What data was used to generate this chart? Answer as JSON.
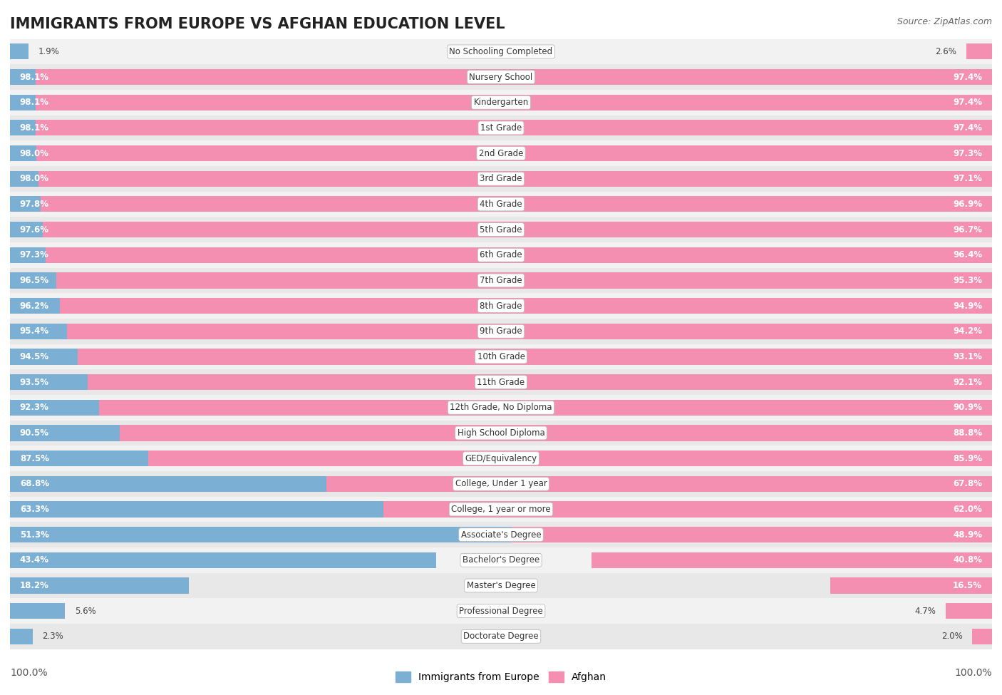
{
  "title": "IMMIGRANTS FROM EUROPE VS AFGHAN EDUCATION LEVEL",
  "source": "Source: ZipAtlas.com",
  "categories": [
    "No Schooling Completed",
    "Nursery School",
    "Kindergarten",
    "1st Grade",
    "2nd Grade",
    "3rd Grade",
    "4th Grade",
    "5th Grade",
    "6th Grade",
    "7th Grade",
    "8th Grade",
    "9th Grade",
    "10th Grade",
    "11th Grade",
    "12th Grade, No Diploma",
    "High School Diploma",
    "GED/Equivalency",
    "College, Under 1 year",
    "College, 1 year or more",
    "Associate's Degree",
    "Bachelor's Degree",
    "Master's Degree",
    "Professional Degree",
    "Doctorate Degree"
  ],
  "europe_values": [
    1.9,
    98.1,
    98.1,
    98.1,
    98.0,
    98.0,
    97.8,
    97.6,
    97.3,
    96.5,
    96.2,
    95.4,
    94.5,
    93.5,
    92.3,
    90.5,
    87.5,
    68.8,
    63.3,
    51.3,
    43.4,
    18.2,
    5.6,
    2.3
  ],
  "afghan_values": [
    2.6,
    97.4,
    97.4,
    97.4,
    97.3,
    97.1,
    96.9,
    96.7,
    96.4,
    95.3,
    94.9,
    94.2,
    93.1,
    92.1,
    90.9,
    88.8,
    85.9,
    67.8,
    62.0,
    48.9,
    40.8,
    16.5,
    4.7,
    2.0
  ],
  "europe_color": "#7bafd4",
  "afghan_color": "#f48fb1",
  "background_color": "#ffffff",
  "row_bg_even": "#f2f2f2",
  "row_bg_odd": "#e8e8e8",
  "title_fontsize": 15,
  "label_fontsize": 8.5,
  "value_fontsize": 8.5,
  "legend_fontsize": 10,
  "axis_label_fontsize": 10
}
